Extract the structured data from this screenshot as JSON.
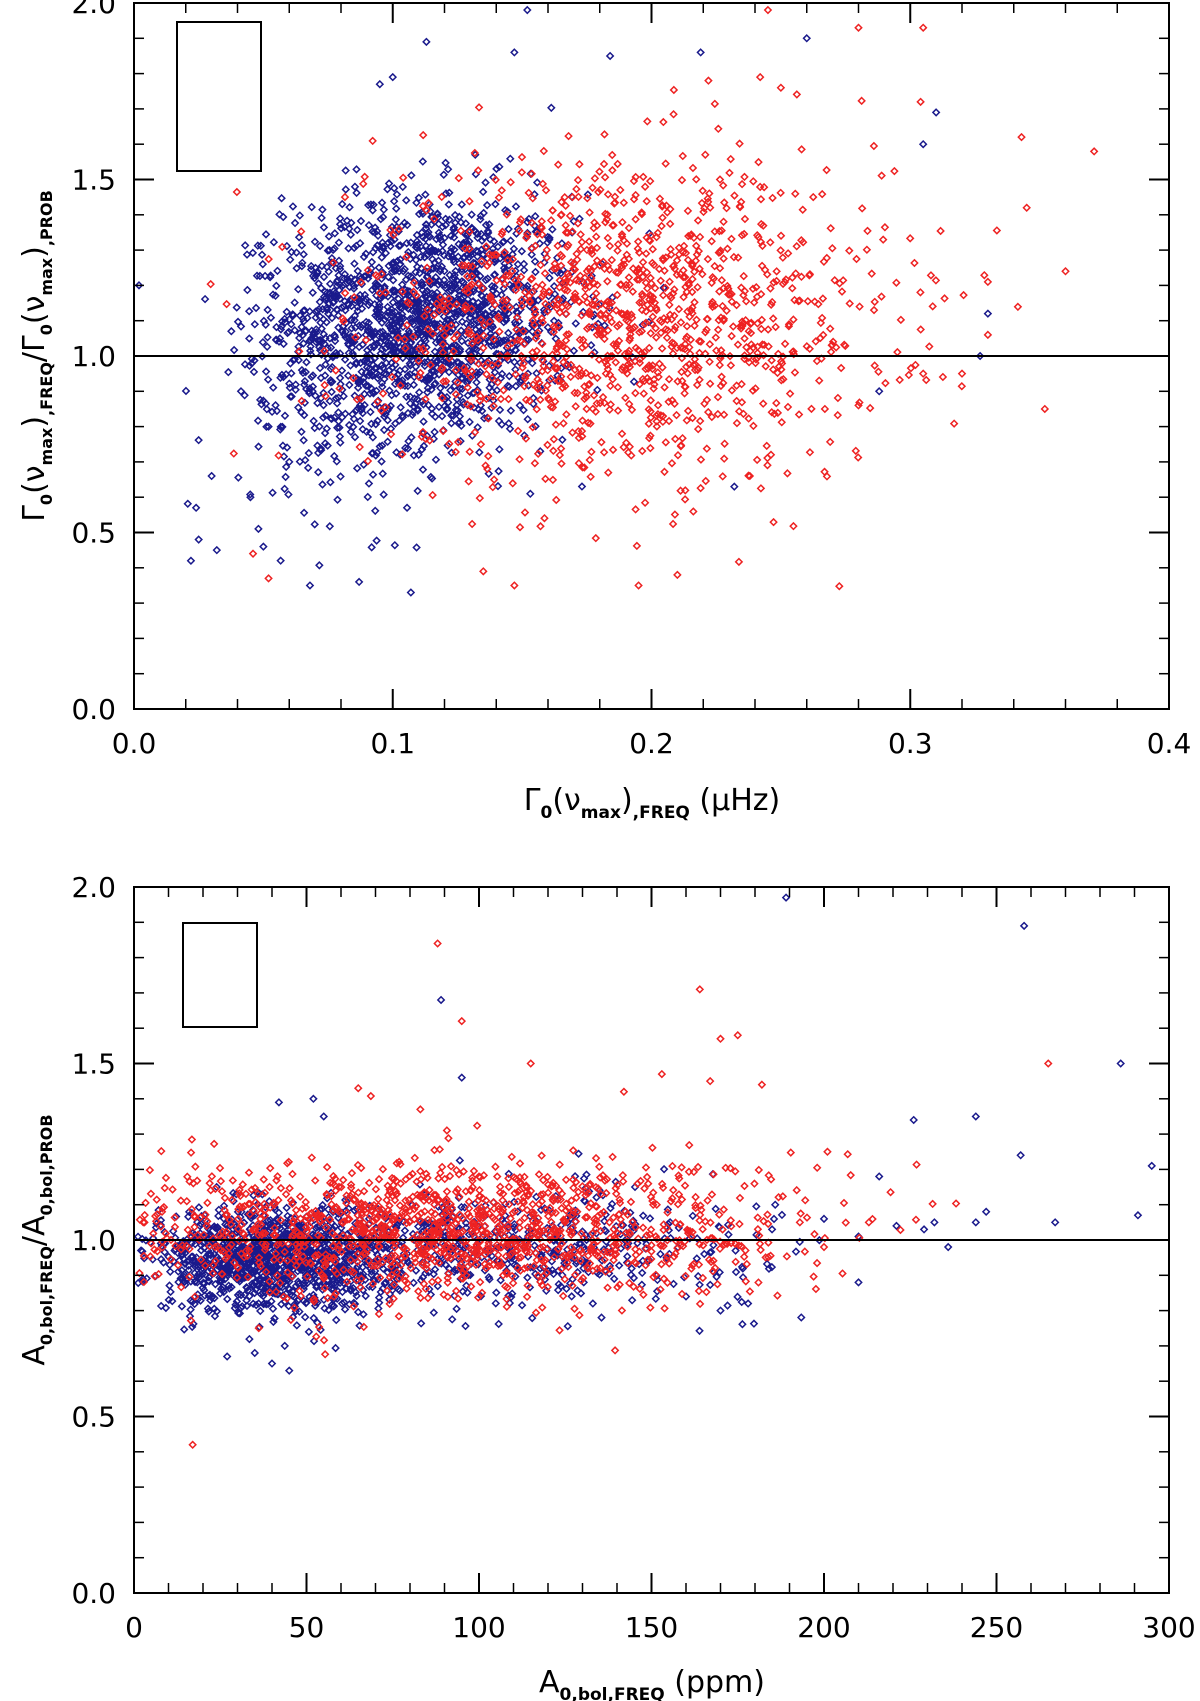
{
  "chart_data": [
    {
      "type": "scatter",
      "title": "",
      "xlabel": {
        "main": "Γ",
        "sub0": "0",
        "mid": "(ν",
        "sub1": "max",
        "mid2": ")",
        "sub2": ",FREQ",
        "unit": " (μHz)"
      },
      "ylabel": {
        "p1": "Γ",
        "s1": "0",
        "p2": "(ν",
        "s2": "max",
        "p3": ")",
        "s3": ",FREQ",
        "p4": "/Γ",
        "s4": "0",
        "p5": "(ν",
        "s5": "max",
        "p6": ")",
        "s6": ",PROB"
      },
      "xlim": [
        0.0,
        0.4
      ],
      "ylim": [
        0.0,
        2.0
      ],
      "xticks": [
        "0.0",
        "0.1",
        "0.2",
        "0.3",
        "0.4"
      ],
      "yticks": [
        "0.0",
        "0.5",
        "1.0",
        "1.5",
        "2.0"
      ],
      "reference_line_y": 1.0,
      "legend_box": "top-left (empty)",
      "series_colors": [
        "#1a1a8c",
        "#ee2222"
      ],
      "series": [
        {
          "color": "#1a1a8c",
          "marker": "diamond",
          "clusters": [
            [
              0.115,
              1.12,
              0.028,
              0.17,
              1500
            ],
            [
              0.08,
              0.95,
              0.02,
              0.2,
              300
            ]
          ],
          "points": [
            [
              0.022,
              0.42
            ],
            [
              0.025,
              0.48
            ],
            [
              0.024,
              0.57
            ],
            [
              0.03,
              0.66
            ],
            [
              0.032,
              0.45
            ],
            [
              0.045,
              0.6
            ],
            [
              0.05,
              0.46
            ],
            [
              0.068,
              0.35
            ],
            [
              0.087,
              0.36
            ],
            [
              0.107,
              0.33
            ],
            [
              0.095,
              1.77
            ],
            [
              0.1,
              1.79
            ],
            [
              0.113,
              1.89
            ],
            [
              0.147,
              1.86
            ],
            [
              0.152,
              1.98
            ],
            [
              0.184,
              1.85
            ],
            [
              0.219,
              1.86
            ],
            [
              0.26,
              1.9
            ],
            [
              0.31,
              1.69
            ],
            [
              0.305,
              1.6
            ],
            [
              0.288,
              0.9
            ],
            [
              0.33,
              1.12
            ],
            [
              0.327,
              1.0
            ],
            [
              0.232,
              0.63
            ],
            [
              0.157,
              0.73
            ],
            [
              0.052,
              0.8
            ],
            [
              0.06,
              0.7
            ]
          ]
        },
        {
          "color": "#ee2222",
          "marker": "diamond",
          "clusters": [
            [
              0.19,
              1.1,
              0.05,
              0.22,
              1300
            ]
          ],
          "points": [
            [
              0.046,
              0.44
            ],
            [
              0.052,
              0.37
            ],
            [
              0.135,
              0.39
            ],
            [
              0.147,
              0.35
            ],
            [
              0.195,
              0.35
            ],
            [
              0.21,
              0.38
            ],
            [
              0.245,
              1.98
            ],
            [
              0.28,
              1.93
            ],
            [
              0.305,
              1.93
            ],
            [
              0.304,
              1.72
            ],
            [
              0.352,
              0.85
            ],
            [
              0.343,
              1.62
            ],
            [
              0.345,
              1.42
            ],
            [
              0.33,
              1.06
            ],
            [
              0.32,
              0.95
            ],
            [
              0.305,
              0.95
            ],
            [
              0.267,
              0.85
            ],
            [
              0.28,
              0.86
            ],
            [
              0.286,
              1.13
            ],
            [
              0.36,
              1.24
            ],
            [
              0.33,
              1.21
            ],
            [
              0.238,
              0.66
            ],
            [
              0.242,
              1.79
            ],
            [
              0.25,
              1.76
            ],
            [
              0.222,
              1.78
            ]
          ]
        }
      ]
    },
    {
      "type": "scatter",
      "title": "",
      "xlabel": {
        "main": "A",
        "sub0": "0,bol,FREQ",
        "unit": " (ppm)"
      },
      "ylabel": {
        "p1": "A",
        "s1": "0,bol,FREQ",
        "p2": "/A",
        "s2": "0,bol,PROB"
      },
      "xlim": [
        0,
        300
      ],
      "ylim": [
        0.0,
        2.0
      ],
      "xticks": [
        "0",
        "50",
        "100",
        "150",
        "200",
        "250",
        "300"
      ],
      "yticks": [
        "0.0",
        "0.5",
        "1.0",
        "1.5",
        "2.0"
      ],
      "reference_line_y": 1.0,
      "legend_box": "top-left (empty)",
      "series_colors": [
        "#1a1a8c",
        "#ee2222"
      ],
      "series": [
        {
          "color": "#1a1a8c",
          "marker": "diamond",
          "clusters": [
            [
              40,
              0.94,
              18,
              0.07,
              1100
            ],
            [
              100,
              0.98,
              40,
              0.08,
              600
            ]
          ],
          "points": [
            [
              189,
              1.97
            ],
            [
              258,
              1.89
            ],
            [
              286,
              1.5
            ],
            [
              295,
              1.21
            ],
            [
              257,
              1.24
            ],
            [
              244,
              1.35
            ],
            [
              226,
              1.34
            ],
            [
              216,
              1.18
            ],
            [
              229,
              1.03
            ],
            [
              236,
              0.98
            ],
            [
              210,
              0.88
            ],
            [
              267,
              1.05
            ],
            [
              291,
              1.07
            ],
            [
              247,
              1.08
            ],
            [
              244,
              1.05
            ],
            [
              232,
              1.05
            ],
            [
              221,
              1.04
            ],
            [
              210,
              1.01
            ],
            [
              200,
              1.06
            ],
            [
              89,
              1.68
            ],
            [
              95,
              1.46
            ],
            [
              42,
              1.39
            ],
            [
              52,
              1.4
            ],
            [
              55,
              1.35
            ],
            [
              45,
              0.63
            ],
            [
              40,
              0.65
            ],
            [
              35,
              0.68
            ],
            [
              170,
              0.8
            ],
            [
              178,
              0.82
            ],
            [
              160,
              0.84
            ],
            [
              133,
              0.82
            ],
            [
              27,
              0.67
            ]
          ]
        },
        {
          "color": "#ee2222",
          "marker": "diamond",
          "clusters": [
            [
              90,
              1.03,
              50,
              0.1,
              1400
            ]
          ],
          "points": [
            [
              17,
              0.42
            ],
            [
              88,
              1.84
            ],
            [
              164,
              1.71
            ],
            [
              175,
              1.58
            ],
            [
              170,
              1.57
            ],
            [
              95,
              1.62
            ],
            [
              115,
              1.5
            ],
            [
              153,
              1.47
            ],
            [
              265,
              1.5
            ],
            [
              167,
              1.45
            ],
            [
              182,
              1.44
            ],
            [
              65,
              1.43
            ],
            [
              83,
              1.37
            ],
            [
              142,
              1.42
            ],
            [
              201,
              1.25
            ],
            [
              193,
              1.05
            ],
            [
              213,
              1.05
            ],
            [
              200,
              0.98
            ]
          ]
        }
      ]
    }
  ]
}
